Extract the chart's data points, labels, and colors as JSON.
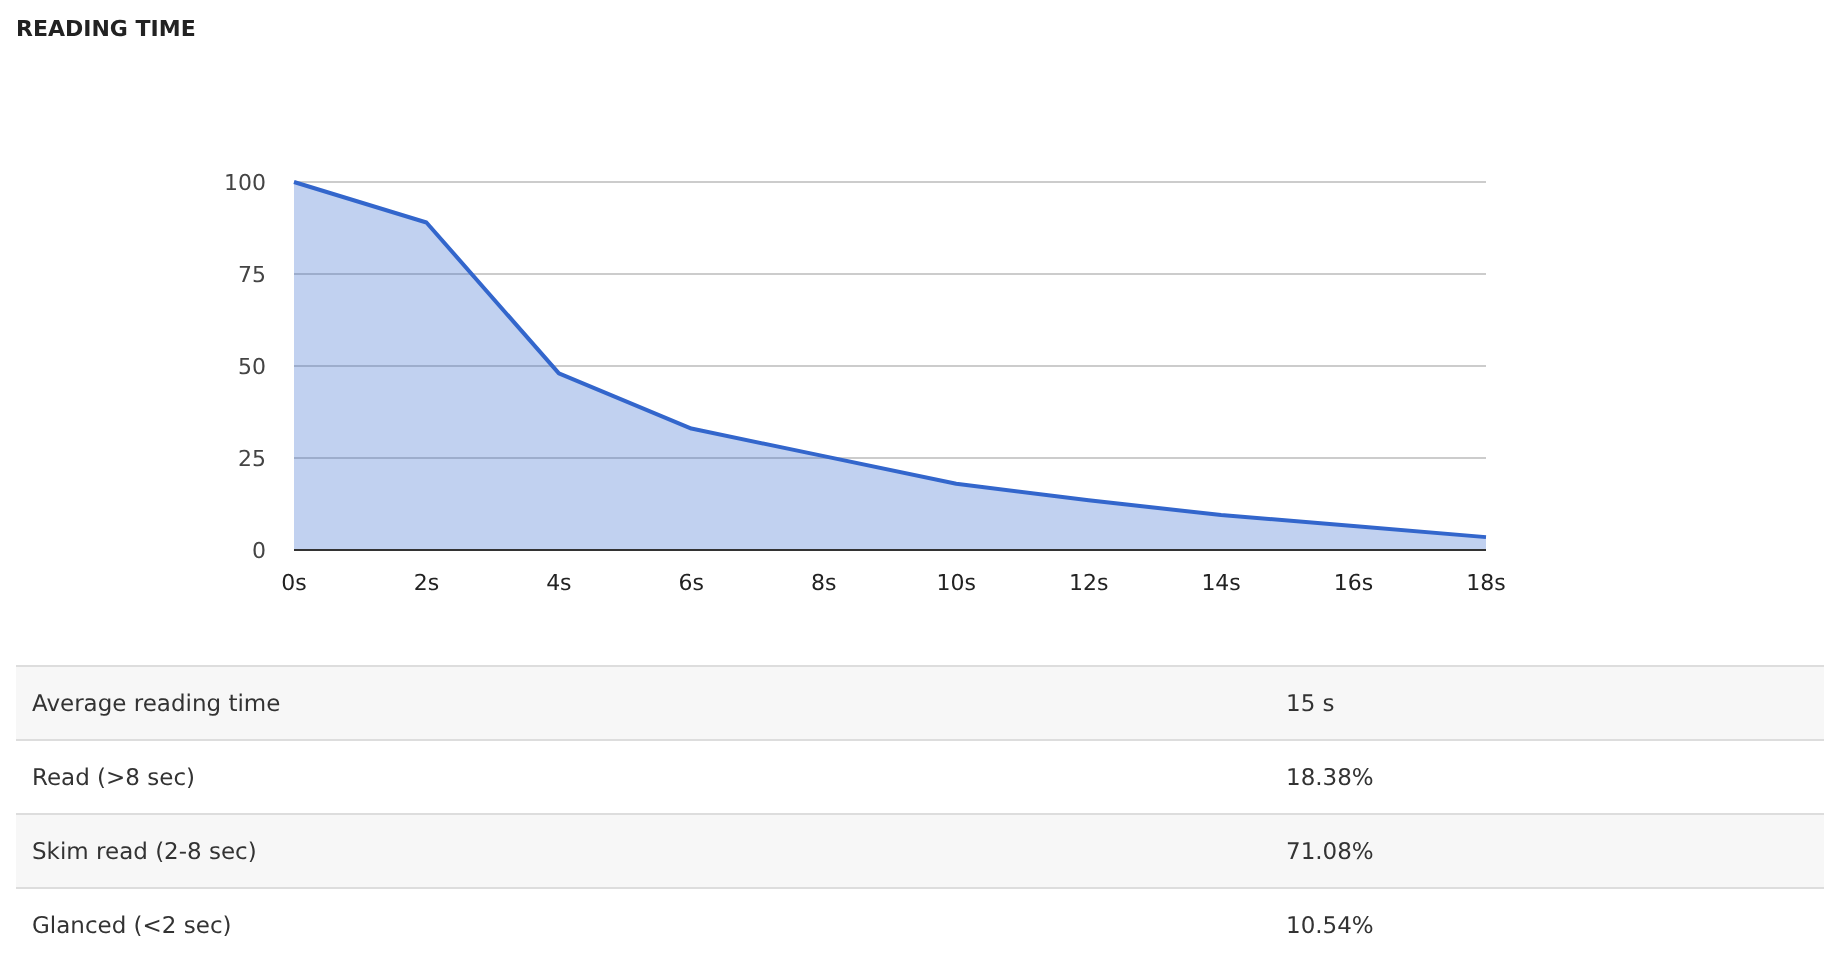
{
  "chart_data": {
    "type": "area",
    "title": "READING TIME",
    "categories": [
      "0s",
      "2s",
      "4s",
      "6s",
      "8s",
      "10s",
      "12s",
      "14s",
      "16s",
      "18s"
    ],
    "series": [
      {
        "color": "#3366cc",
        "values": [
          100,
          89,
          48,
          33,
          25.5,
          18,
          13.5,
          9.5,
          6.5,
          3.5
        ]
      }
    ],
    "ylim": [
      0,
      100
    ],
    "yticks": [
      0,
      25,
      50,
      75,
      100
    ],
    "grid": "y",
    "annotations": [
      "Average reading time",
      "15 s",
      "Read (>8 sec)",
      "18.38%",
      "Skim read (2-8 sec)",
      "71.08%",
      "Glanced (<2 sec)",
      "10.54%"
    ]
  }
}
